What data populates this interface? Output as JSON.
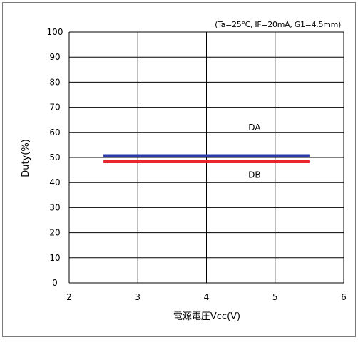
{
  "chart_data": {
    "type": "line",
    "title": "",
    "condition_note": "(Ta=25°C, IF=20mA, G1=4.5mm)",
    "xlabel": "電源電圧Vcc(V)",
    "ylabel": "Duty(%)",
    "xlim": [
      2,
      6
    ],
    "ylim": [
      0,
      100
    ],
    "x_ticks": [
      "2",
      "3",
      "4",
      "5",
      "6"
    ],
    "y_ticks": [
      "0",
      "10",
      "20",
      "30",
      "40",
      "50",
      "60",
      "70",
      "80",
      "90",
      "100"
    ],
    "grid": true,
    "series": [
      {
        "name": "DA",
        "color": "#2b3aa8",
        "x": [
          2.5,
          5.5
        ],
        "y": [
          50.7,
          50.7
        ]
      },
      {
        "name": "DB",
        "color": "#e8262c",
        "x": [
          2.5,
          5.5
        ],
        "y": [
          48.3,
          48.3
        ]
      }
    ]
  }
}
